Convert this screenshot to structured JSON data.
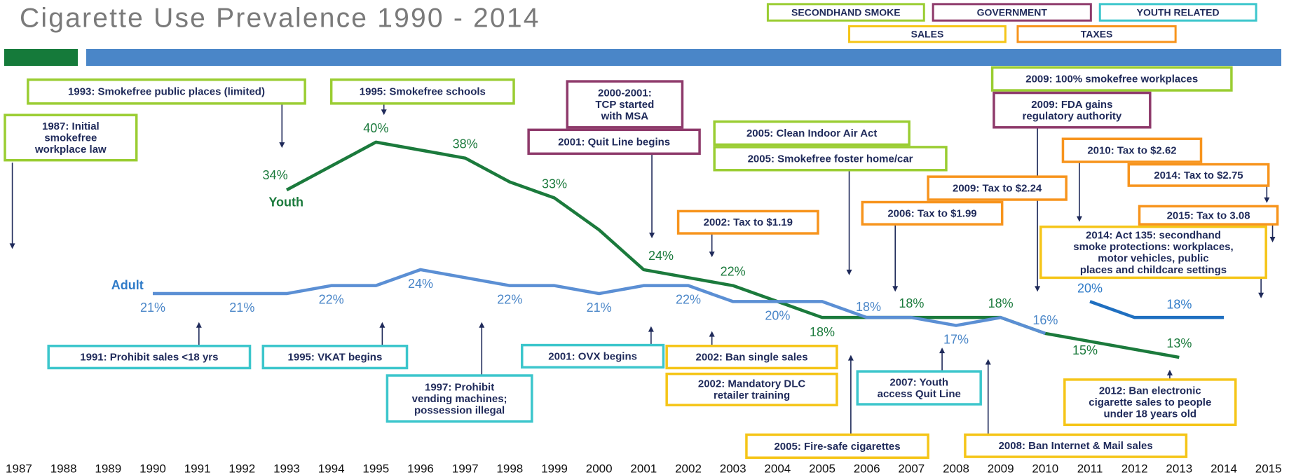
{
  "chart_data": {
    "type": "line",
    "title": "Cigarette Use Prevalence 1990 - 2014",
    "x": [
      1990,
      1991,
      1992,
      1993,
      1994,
      1995,
      1996,
      1997,
      1998,
      1999,
      2000,
      2001,
      2002,
      2003,
      2004,
      2005,
      2006,
      2007,
      2008,
      2009,
      2010,
      2011,
      2012,
      2013,
      2014
    ],
    "xlim": [
      1987,
      2015
    ],
    "xticks": [
      1987,
      1988,
      1989,
      1990,
      1991,
      1992,
      1993,
      1994,
      1995,
      1996,
      1997,
      1998,
      1999,
      2000,
      2001,
      2002,
      2003,
      2004,
      2005,
      2006,
      2007,
      2008,
      2009,
      2010,
      2011,
      2012,
      2013,
      2014,
      2015
    ],
    "ylim": [
      0,
      50
    ],
    "series": [
      {
        "name": "Youth",
        "color": "#1b7a3c",
        "values": [
          null,
          null,
          null,
          34,
          37,
          40,
          39,
          38,
          35,
          33,
          29,
          24,
          23,
          22,
          20,
          18,
          18,
          18,
          18,
          18,
          16,
          15,
          14,
          13,
          null
        ],
        "value_labels": [
          null,
          null,
          null,
          "34%",
          null,
          "40%",
          null,
          "38%",
          null,
          "33%",
          null,
          "24%",
          null,
          "22%",
          null,
          "18%",
          null,
          "18%",
          null,
          "18%",
          null,
          "15%",
          null,
          "13%",
          null
        ]
      },
      {
        "name": "Adult",
        "color": "#5b8fd4",
        "values": [
          21,
          21,
          21,
          21,
          22,
          22,
          24,
          23,
          22,
          22,
          21,
          22,
          22,
          20,
          20,
          20,
          18,
          18,
          17,
          18,
          16,
          null,
          null,
          null,
          null
        ],
        "value_labels": [
          "21%",
          null,
          "21%",
          null,
          "22%",
          null,
          "24%",
          null,
          "22%",
          null,
          "21%",
          null,
          "22%",
          null,
          "20%",
          null,
          "18%",
          null,
          "17%",
          null,
          "16%",
          null,
          null,
          null,
          null
        ]
      },
      {
        "color": "#1f6fc0",
        "values": [
          null,
          null,
          null,
          null,
          null,
          null,
          null,
          null,
          null,
          null,
          null,
          null,
          null,
          null,
          null,
          null,
          null,
          null,
          null,
          null,
          null,
          20,
          18,
          18,
          18
        ],
        "value_labels": [
          null,
          null,
          null,
          null,
          null,
          null,
          null,
          null,
          null,
          null,
          null,
          null,
          null,
          null,
          null,
          null,
          null,
          null,
          null,
          null,
          null,
          "20%",
          null,
          "18%",
          null
        ]
      }
    ],
    "legend": [
      {
        "label": "SECONDHAND SMOKE",
        "color": "#9acd32"
      },
      {
        "label": "GOVERNMENT",
        "color": "#8e3a6b"
      },
      {
        "label": "YOUTH RELATED",
        "color": "#3cc6cc"
      },
      {
        "label": "SALES",
        "color": "#f5c518"
      },
      {
        "label": "TAXES",
        "color": "#f7941d"
      }
    ],
    "annotations": [
      {
        "lines": [
          "1993: Smokefree public places (limited)"
        ],
        "color": "#9acd32"
      },
      {
        "lines": [
          "1987: Initial",
          "smokefree",
          "workplace law"
        ],
        "color": "#9acd32"
      },
      {
        "lines": [
          "1995: Smokefree schools"
        ],
        "color": "#9acd32"
      },
      {
        "lines": [
          "2000-2001:",
          "TCP started",
          "with MSA"
        ],
        "color": "#8e3a6b"
      },
      {
        "lines": [
          "2001: Quit Line begins"
        ],
        "color": "#8e3a6b"
      },
      {
        "lines": [
          "2005: Clean Indoor Air Act"
        ],
        "color": "#9acd32"
      },
      {
        "lines": [
          "2005: Smokefree foster home/car"
        ],
        "color": "#9acd32"
      },
      {
        "lines": [
          "2002: Tax to $1.19"
        ],
        "color": "#f7941d"
      },
      {
        "lines": [
          "2009: 100% smokefree workplaces"
        ],
        "color": "#9acd32"
      },
      {
        "lines": [
          "2009: FDA gains",
          "regulatory authority"
        ],
        "color": "#8e3a6b"
      },
      {
        "lines": [
          "2010: Tax to $2.62"
        ],
        "color": "#f7941d"
      },
      {
        "lines": [
          "2014: Tax to $2.75"
        ],
        "color": "#f7941d"
      },
      {
        "lines": [
          "2009: Tax to $2.24"
        ],
        "color": "#f7941d"
      },
      {
        "lines": [
          "2006: Tax to $1.99"
        ],
        "color": "#f7941d"
      },
      {
        "lines": [
          "2015: Tax to 3.08"
        ],
        "color": "#f7941d"
      },
      {
        "lines": [
          "2014: Act 135: secondhand",
          "smoke protections: workplaces,",
          "motor vehicles, public",
          "places and childcare settings"
        ],
        "color": "#f5c518"
      },
      {
        "lines": [
          "1991: Prohibit sales <18 yrs"
        ],
        "color": "#3cc6cc"
      },
      {
        "lines": [
          "1995: VKAT begins"
        ],
        "color": "#3cc6cc"
      },
      {
        "lines": [
          "1997: Prohibit",
          "vending machines;",
          "possession illegal"
        ],
        "color": "#3cc6cc"
      },
      {
        "lines": [
          "2001: OVX begins"
        ],
        "color": "#3cc6cc"
      },
      {
        "lines": [
          "2002: Ban single sales"
        ],
        "color": "#f5c518"
      },
      {
        "lines": [
          "2002: Mandatory DLC",
          "retailer training"
        ],
        "color": "#f5c518"
      },
      {
        "lines": [
          "2005: Fire-safe cigarettes"
        ],
        "color": "#f5c518"
      },
      {
        "lines": [
          "2007: Youth",
          "access Quit Line"
        ],
        "color": "#3cc6cc"
      },
      {
        "lines": [
          "2008: Ban Internet & Mail sales"
        ],
        "color": "#f5c518"
      },
      {
        "lines": [
          "2012: Ban electronic",
          "cigarette sales to people",
          "under 18 years old"
        ],
        "color": "#f5c518"
      }
    ]
  }
}
